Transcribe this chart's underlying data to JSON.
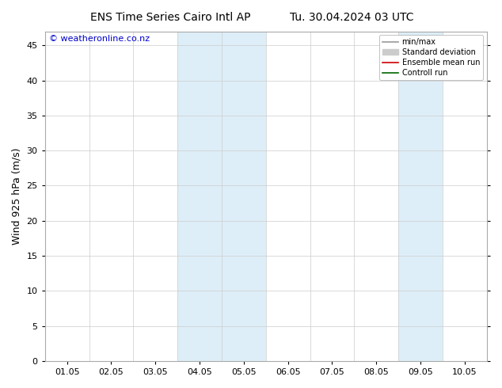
{
  "title_left": "ENS Time Series Cairo Intl AP",
  "title_right": "Tu. 30.04.2024 03 UTC",
  "ylabel": "Wind 925 hPa (m/s)",
  "watermark": "© weatheronline.co.nz",
  "xlim": [
    0,
    10
  ],
  "ylim": [
    0,
    47
  ],
  "yticks": [
    0,
    5,
    10,
    15,
    20,
    25,
    30,
    35,
    40,
    45
  ],
  "xtick_labels": [
    "01.05",
    "02.05",
    "03.05",
    "04.05",
    "05.05",
    "06.05",
    "07.05",
    "08.05",
    "09.05",
    "10.05"
  ],
  "xtick_positions": [
    0.5,
    1.5,
    2.5,
    3.5,
    4.5,
    5.5,
    6.5,
    7.5,
    8.5,
    9.5
  ],
  "shaded_regions": [
    {
      "xmin": 3.0,
      "xmax": 4.0,
      "color": "#ddeef8"
    },
    {
      "xmin": 4.0,
      "xmax": 5.0,
      "color": "#ddeef8"
    },
    {
      "xmin": 8.0,
      "xmax": 9.0,
      "color": "#ddeef8"
    }
  ],
  "legend_items": [
    {
      "label": "min/max",
      "color": "#999999",
      "lw": 1.2,
      "style": "-",
      "type": "line"
    },
    {
      "label": "Standard deviation",
      "color": "#cccccc",
      "lw": 5,
      "style": "-",
      "type": "patch"
    },
    {
      "label": "Ensemble mean run",
      "color": "#cc0000",
      "lw": 1.2,
      "style": "-",
      "type": "line"
    },
    {
      "label": "Controll run",
      "color": "#006600",
      "lw": 1.2,
      "style": "-",
      "type": "line"
    }
  ],
  "background_color": "#ffffff",
  "plot_bg_color": "#ffffff",
  "border_color": "#000000",
  "title_fontsize": 10,
  "label_fontsize": 9,
  "tick_fontsize": 8,
  "watermark_color": "#0000cc",
  "watermark_fontsize": 8,
  "grid_color": "#cccccc",
  "grid_lw": 0.5
}
